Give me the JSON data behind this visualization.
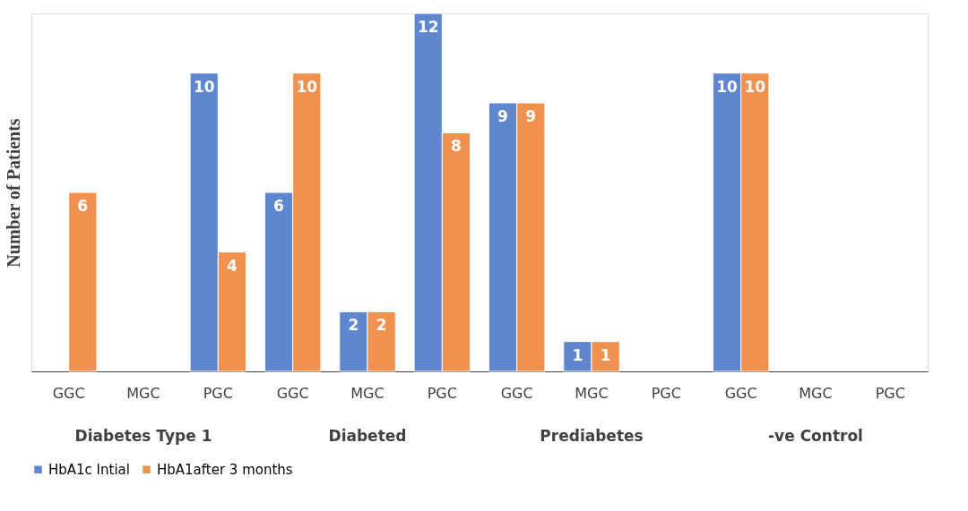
{
  "chart_data": {
    "type": "bar",
    "ylabel": "Number of Patients",
    "categories": [
      "GGC",
      "MGC",
      "PGC",
      "GGC",
      "MGC",
      "PGC",
      "GGC",
      "MGC",
      "PGC",
      "GGC",
      "MGC",
      "PGC"
    ],
    "series": [
      {
        "name": "HbA1c Intial",
        "color": "#5f87cf",
        "values": [
          null,
          null,
          10,
          6,
          2,
          12,
          9,
          1,
          null,
          10,
          null,
          null
        ]
      },
      {
        "name": "HbA1after 3 months",
        "color": "#f0914f",
        "values": [
          6,
          null,
          4,
          10,
          2,
          8,
          9,
          1,
          null,
          10,
          null,
          null
        ]
      }
    ],
    "annotations": [
      "Diabetes Type 1",
      "Diabeted",
      "Prediabetes",
      "-ve Control"
    ],
    "data_labels": true,
    "legend": "bottom",
    "grid": false
  }
}
